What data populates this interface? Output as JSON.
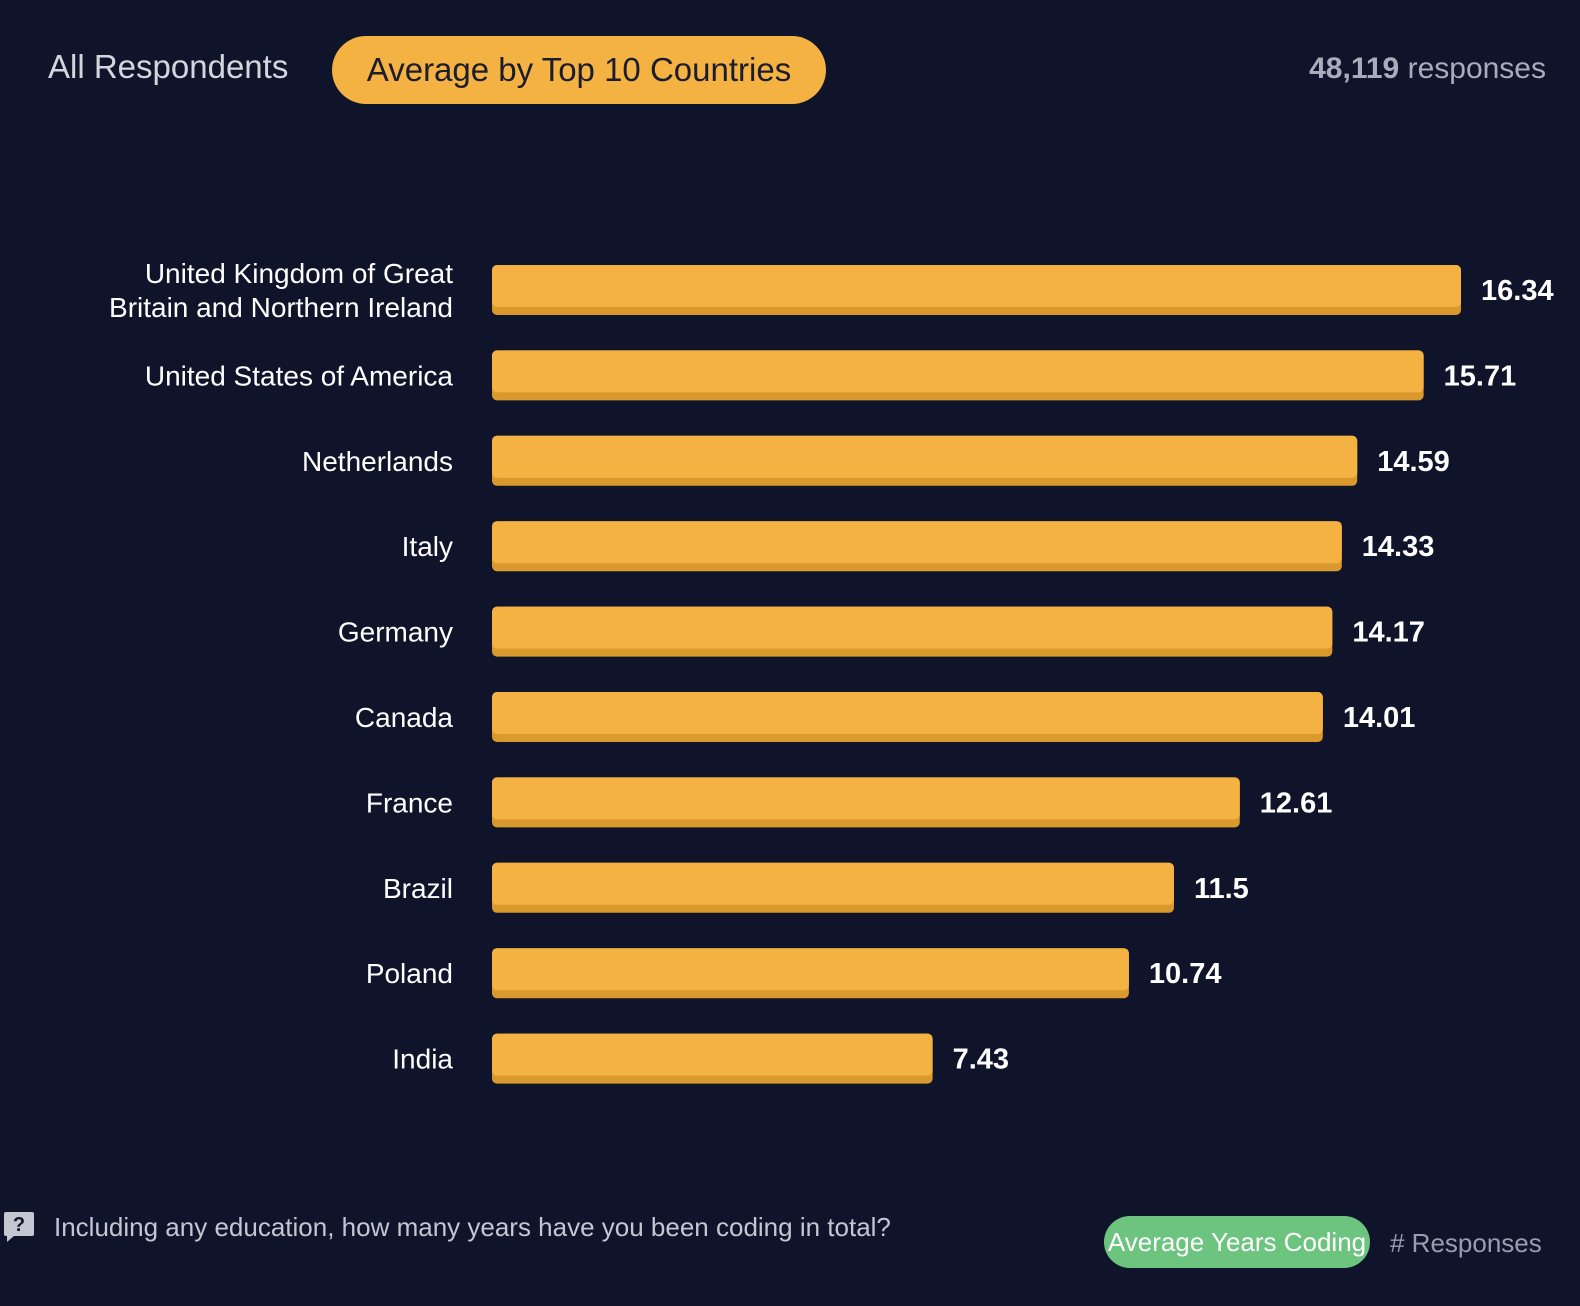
{
  "tabs": {
    "all_label": "All Respondents",
    "active_label": "Average by Top 10 Countries"
  },
  "responses": {
    "count": "48,119",
    "suffix": "responses"
  },
  "colors": {
    "background": "#10142b",
    "bar": "#f4b243",
    "bar_shadow": "#d9992d",
    "legend_green": "#6cc47f"
  },
  "chart_data": {
    "type": "bar",
    "orientation": "horizontal",
    "title": "",
    "xlabel": "",
    "ylabel": "",
    "xlim": [
      0,
      16.34
    ],
    "grid": false,
    "categories": [
      [
        "United Kingdom of Great",
        "Britain and Northern Ireland"
      ],
      [
        "United States of America"
      ],
      [
        "Netherlands"
      ],
      [
        "Italy"
      ],
      [
        "Germany"
      ],
      [
        "Canada"
      ],
      [
        "France"
      ],
      [
        "Brazil"
      ],
      [
        "Poland"
      ],
      [
        "India"
      ]
    ],
    "values": [
      16.34,
      15.71,
      14.59,
      14.33,
      14.17,
      14.01,
      12.61,
      11.5,
      10.74,
      7.43
    ],
    "value_labels": [
      "16.34",
      "15.71",
      "14.59",
      "14.33",
      "14.17",
      "14.01",
      "12.61",
      "11.5",
      "10.74",
      "7.43"
    ]
  },
  "footer": {
    "question_icon": "question-icon",
    "question": "Including any education, how many years have you been coding in total?",
    "legend_active": "Average Years Coding",
    "legend_inactive": "# Responses"
  }
}
